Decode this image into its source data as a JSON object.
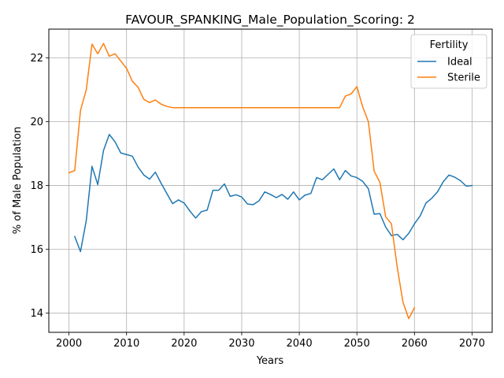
{
  "chart_data": {
    "type": "line",
    "title": "FAVOUR_SPANKING_Male_Population_Scoring: 2",
    "xlabel": "Years",
    "ylabel": "% of Male Population",
    "xlim": [
      1996.5,
      2073.5
    ],
    "ylim": [
      13.4,
      22.9
    ],
    "xticks": [
      2000,
      2010,
      2020,
      2030,
      2040,
      2050,
      2060,
      2070
    ],
    "yticks": [
      14,
      16,
      18,
      20,
      22
    ],
    "grid": true,
    "legend": {
      "title": "Fertility",
      "placement": "top-right"
    },
    "series": [
      {
        "name": "Ideal",
        "color": "#1f77b4",
        "x": [
          2001,
          2002,
          2003,
          2004,
          2005,
          2006,
          2007,
          2008,
          2009,
          2010,
          2011,
          2012,
          2013,
          2014,
          2015,
          2016,
          2017,
          2018,
          2019,
          2020,
          2021,
          2022,
          2023,
          2024,
          2025,
          2026,
          2027,
          2028,
          2029,
          2030,
          2031,
          2032,
          2033,
          2034,
          2035,
          2036,
          2037,
          2038,
          2039,
          2040,
          2041,
          2042,
          2043,
          2044,
          2045,
          2046,
          2047,
          2048,
          2049,
          2050,
          2051,
          2052,
          2053,
          2054,
          2055,
          2056,
          2057,
          2058,
          2059,
          2060,
          2061,
          2062,
          2063,
          2064,
          2065,
          2066,
          2067,
          2068,
          2069,
          2070
        ],
        "values": [
          16.4,
          15.93,
          16.9,
          18.6,
          18.03,
          19.1,
          19.6,
          19.37,
          19.02,
          18.97,
          18.92,
          18.58,
          18.33,
          18.2,
          18.42,
          18.07,
          17.75,
          17.43,
          17.55,
          17.45,
          17.2,
          16.98,
          17.18,
          17.23,
          17.85,
          17.85,
          18.05,
          17.66,
          17.71,
          17.64,
          17.42,
          17.4,
          17.52,
          17.8,
          17.72,
          17.62,
          17.72,
          17.57,
          17.8,
          17.55,
          17.7,
          17.75,
          18.25,
          18.18,
          18.35,
          18.52,
          18.18,
          18.47,
          18.3,
          18.25,
          18.13,
          17.9,
          17.1,
          17.12,
          16.7,
          16.43,
          16.47,
          16.3,
          16.5,
          16.8,
          17.05,
          17.45,
          17.6,
          17.8,
          18.12,
          18.33,
          18.26,
          18.15,
          17.98,
          18.0
        ]
      },
      {
        "name": "Sterile",
        "color": "#ff7f0e",
        "x": [
          2000,
          2001,
          2002,
          2003,
          2004,
          2005,
          2006,
          2007,
          2008,
          2009,
          2010,
          2011,
          2012,
          2013,
          2014,
          2015,
          2016,
          2017,
          2018,
          2019,
          2020,
          2021,
          2022,
          2023,
          2024,
          2025,
          2026,
          2027,
          2028,
          2029,
          2030,
          2031,
          2032,
          2033,
          2034,
          2035,
          2036,
          2037,
          2038,
          2039,
          2040,
          2041,
          2042,
          2043,
          2044,
          2045,
          2046,
          2047,
          2048,
          2049,
          2050,
          2051,
          2052,
          2053,
          2054,
          2055,
          2056,
          2057,
          2058,
          2059,
          2060
        ],
        "values": [
          18.4,
          18.47,
          20.35,
          21.0,
          22.43,
          22.13,
          22.45,
          22.05,
          22.13,
          21.9,
          21.67,
          21.27,
          21.08,
          20.7,
          20.6,
          20.68,
          20.55,
          20.48,
          20.44,
          20.44,
          20.44,
          20.44,
          20.44,
          20.44,
          20.44,
          20.44,
          20.44,
          20.44,
          20.44,
          20.44,
          20.44,
          20.44,
          20.44,
          20.44,
          20.44,
          20.44,
          20.44,
          20.44,
          20.44,
          20.44,
          20.44,
          20.44,
          20.44,
          20.44,
          20.44,
          20.44,
          20.44,
          20.44,
          20.8,
          20.87,
          21.1,
          20.47,
          20.0,
          18.45,
          18.1,
          17.02,
          16.8,
          15.45,
          14.35,
          13.83,
          14.17
        ]
      }
    ]
  }
}
